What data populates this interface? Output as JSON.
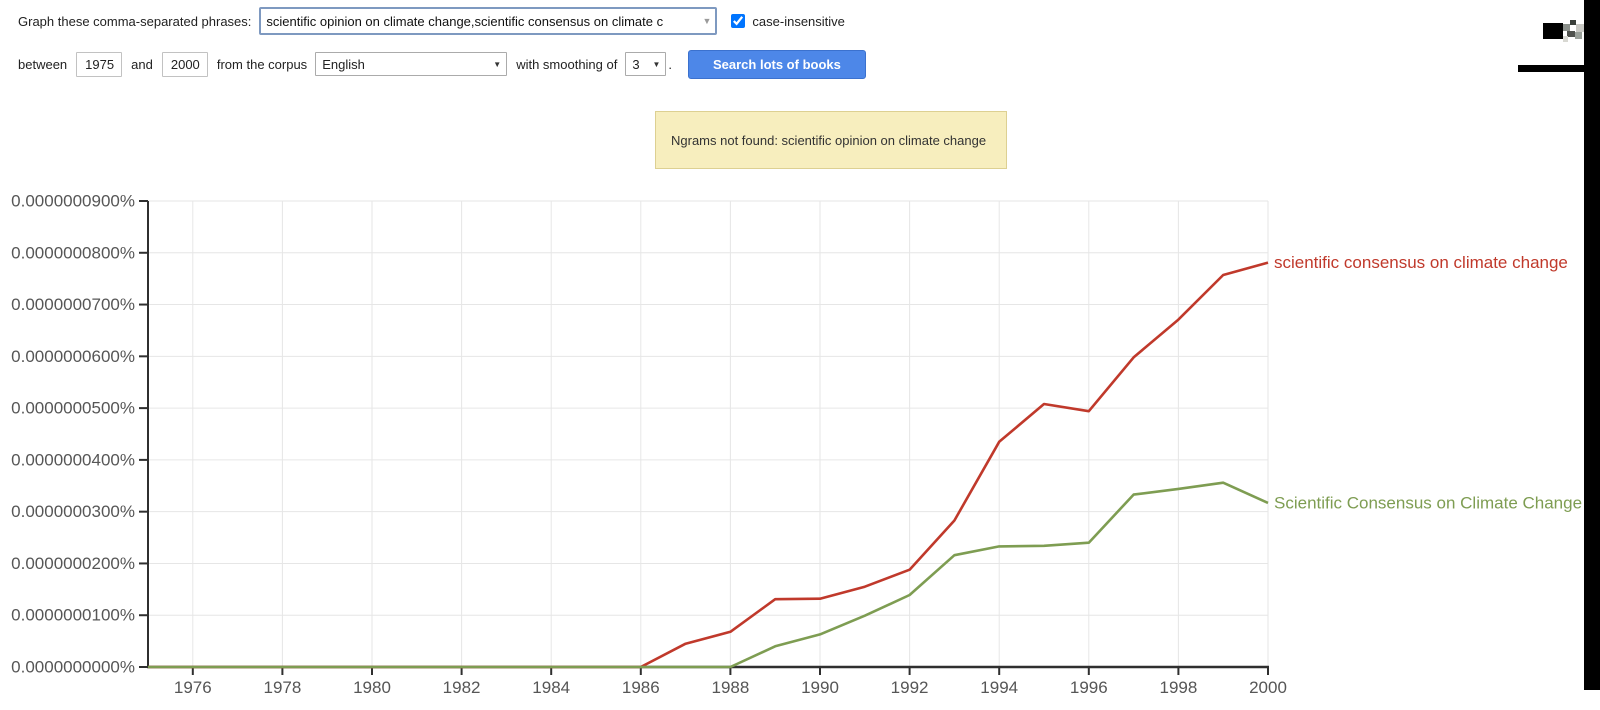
{
  "form": {
    "phrase_label": "Graph these comma-separated phrases:",
    "phrase_value": "scientific opinion on climate change,scientific consensus on climate c",
    "case_insensitive_checked": true,
    "case_insensitive_label": "case-insensitive",
    "between_label": "between",
    "start_year": "1975",
    "and_label": "and",
    "end_year": "2000",
    "corpus_label": "from the corpus",
    "corpus_value": "English",
    "smoothing_label": "with smoothing of",
    "smoothing_value": "3",
    "period_label": ".",
    "search_button_label": "Search lots of books"
  },
  "notice": {
    "text": "Ngrams not found: scientific opinion on climate change"
  },
  "chart_data": {
    "type": "line",
    "title": "",
    "xlabel": "",
    "ylabel": "",
    "value_unit": "1e-8 percent (1.0 = 0.0000000100%)",
    "x": [
      1975,
      1976,
      1977,
      1978,
      1979,
      1980,
      1981,
      1982,
      1983,
      1984,
      1985,
      1986,
      1987,
      1988,
      1989,
      1990,
      1991,
      1992,
      1993,
      1994,
      1995,
      1996,
      1997,
      1998,
      1999,
      2000
    ],
    "series": [
      {
        "name": "scientific consensus on climate change",
        "color": "#c0392b",
        "values": [
          0,
          0,
          0,
          0,
          0,
          0,
          0,
          0,
          0,
          0,
          0,
          0,
          0.45,
          0.68,
          1.31,
          1.32,
          1.55,
          1.88,
          2.83,
          4.35,
          5.08,
          4.94,
          5.98,
          6.71,
          7.57,
          7.81
        ]
      },
      {
        "name": "Scientific Consensus on Climate Change",
        "color": "#7e9d52",
        "values": [
          0,
          0,
          0,
          0,
          0,
          0,
          0,
          0,
          0,
          0,
          0,
          0,
          0,
          0,
          0.4,
          0.63,
          0.99,
          1.39,
          2.16,
          2.33,
          2.34,
          2.4,
          3.33,
          3.44,
          3.56,
          3.17
        ]
      }
    ],
    "xlim": [
      1975,
      2000
    ],
    "ylim": [
      0,
      9
    ],
    "xtick_years": [
      1976,
      1978,
      1980,
      1982,
      1984,
      1986,
      1988,
      1990,
      1992,
      1994,
      1996,
      1998,
      2000
    ],
    "ytick_values": [
      0,
      1,
      2,
      3,
      4,
      5,
      6,
      7,
      8,
      9
    ],
    "ytick_labels": [
      "0.0000000000%",
      "0.0000000100%",
      "0.0000000200%",
      "0.0000000300%",
      "0.0000000400%",
      "0.0000000500%",
      "0.0000000600%",
      "0.0000000700%",
      "0.0000000800%",
      "0.0000000900%"
    ],
    "grid": true,
    "legend_position": "right of line ends",
    "axis_color": "#2f2f2f",
    "grid_color": "#e6e6e6",
    "tick_text_color": "#565656"
  }
}
